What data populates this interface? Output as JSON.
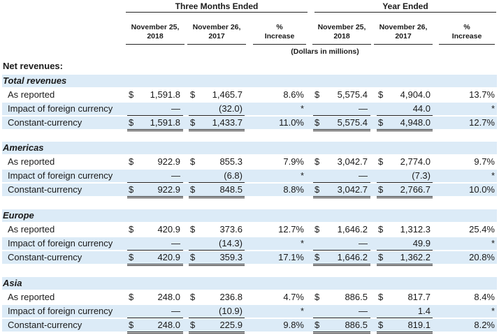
{
  "header": {
    "three_months": "Three Months Ended",
    "year_ended": "Year Ended",
    "cols": [
      "November 25,\n2018",
      "November 26,\n2017",
      "%\nIncrease",
      "November 25,\n2018",
      "November 26,\n2017",
      "%\nIncrease"
    ],
    "unit": "(Dollars in millions)"
  },
  "title": "Net revenues:",
  "sections": [
    {
      "name": "Total revenues",
      "rows": [
        {
          "label": "As reported",
          "d1": "$",
          "v1": "1,591.8",
          "d2": "$",
          "v2": "1,465.7",
          "p1": "8.6%",
          "d3": "$",
          "v3": "5,575.4",
          "d4": "$",
          "v4": "4,904.0",
          "p2": "13.7%"
        },
        {
          "label": "Impact of foreign currency",
          "d1": "",
          "v1": "—",
          "d2": "",
          "v2": "(32.0)",
          "p1": "*",
          "d3": "",
          "v3": "—",
          "d4": "",
          "v4": "44.0",
          "p2": "*"
        },
        {
          "label": "Constant-currency",
          "d1": "$",
          "v1": "1,591.8",
          "d2": "$",
          "v2": "1,433.7",
          "p1": "11.0%",
          "d3": "$",
          "v3": "5,575.4",
          "d4": "$",
          "v4": "4,948.0",
          "p2": "12.7%"
        }
      ]
    },
    {
      "name": "Americas",
      "rows": [
        {
          "label": "As reported",
          "d1": "$",
          "v1": "922.9",
          "d2": "$",
          "v2": "855.3",
          "p1": "7.9%",
          "d3": "$",
          "v3": "3,042.7",
          "d4": "$",
          "v4": "2,774.0",
          "p2": "9.7%"
        },
        {
          "label": "Impact of foreign currency",
          "d1": "",
          "v1": "—",
          "d2": "",
          "v2": "(6.8)",
          "p1": "*",
          "d3": "",
          "v3": "—",
          "d4": "",
          "v4": "(7.3)",
          "p2": "*"
        },
        {
          "label": "Constant-currency",
          "d1": "$",
          "v1": "922.9",
          "d2": "$",
          "v2": "848.5",
          "p1": "8.8%",
          "d3": "$",
          "v3": "3,042.7",
          "d4": "$",
          "v4": "2,766.7",
          "p2": "10.0%"
        }
      ]
    },
    {
      "name": "Europe",
      "rows": [
        {
          "label": "As reported",
          "d1": "$",
          "v1": "420.9",
          "d2": "$",
          "v2": "373.6",
          "p1": "12.7%",
          "d3": "$",
          "v3": "1,646.2",
          "d4": "$",
          "v4": "1,312.3",
          "p2": "25.4%"
        },
        {
          "label": "Impact of foreign currency",
          "d1": "",
          "v1": "—",
          "d2": "",
          "v2": "(14.3)",
          "p1": "*",
          "d3": "",
          "v3": "—",
          "d4": "",
          "v4": "49.9",
          "p2": "*"
        },
        {
          "label": "Constant-currency",
          "d1": "$",
          "v1": "420.9",
          "d2": "$",
          "v2": "359.3",
          "p1": "17.1%",
          "d3": "$",
          "v3": "1,646.2",
          "d4": "$",
          "v4": "1,362.2",
          "p2": "20.8%"
        }
      ]
    },
    {
      "name": "Asia",
      "rows": [
        {
          "label": "As reported",
          "d1": "$",
          "v1": "248.0",
          "d2": "$",
          "v2": "236.8",
          "p1": "4.7%",
          "d3": "$",
          "v3": "886.5",
          "d4": "$",
          "v4": "817.7",
          "p2": "8.4%"
        },
        {
          "label": "Impact of foreign currency",
          "d1": "",
          "v1": "—",
          "d2": "",
          "v2": "(10.9)",
          "p1": "*",
          "d3": "",
          "v3": "—",
          "d4": "",
          "v4": "1.4",
          "p2": "*"
        },
        {
          "label": "Constant-currency",
          "d1": "$",
          "v1": "248.0",
          "d2": "$",
          "v2": "225.9",
          "p1": "9.8%",
          "d3": "$",
          "v3": "886.5",
          "d4": "$",
          "v4": "819.1",
          "p2": "8.2%"
        }
      ]
    }
  ]
}
